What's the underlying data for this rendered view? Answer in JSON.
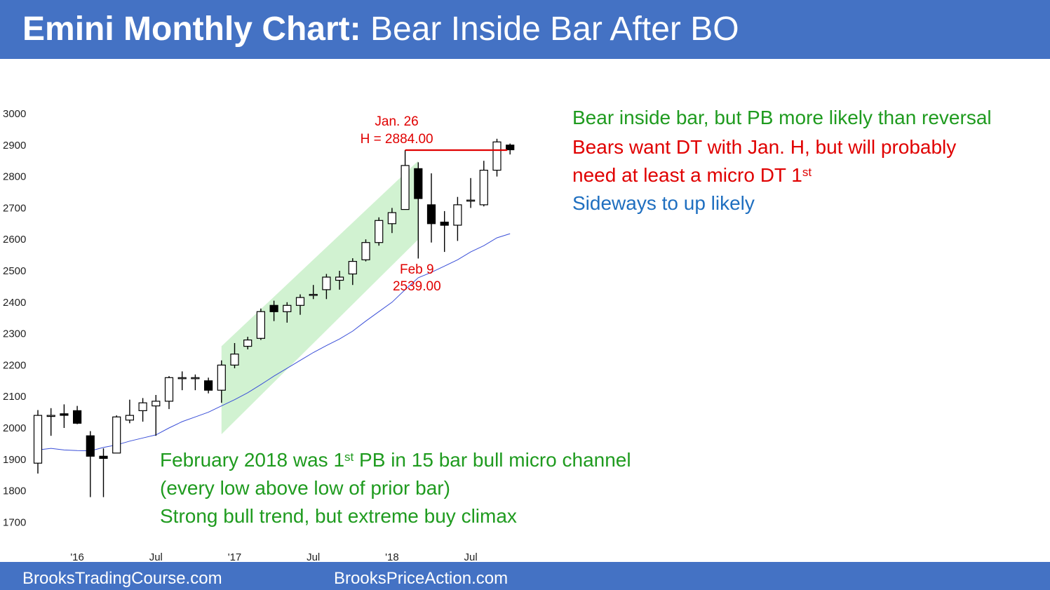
{
  "header": {
    "title_bold": "Emini Monthly Chart:",
    "title_rest": " Bear Inside Bar After BO"
  },
  "footer": {
    "left_link": "BrooksTradingCourse.com",
    "right_link": "BrooksPriceAction.com"
  },
  "notes_right": {
    "line1": "Bear inside bar, but PB more likely than reversal",
    "line2": "Bears want DT with Jan. H, but will probably",
    "line3_pre": "need at least a micro DT 1",
    "line3_sup": "st",
    "line4": "Sideways to up likely"
  },
  "notes_bottom": {
    "line1_pre": "February 2018 was 1",
    "line1_sup": "st",
    "line1_post": " PB in 15 bar bull micro channel",
    "line2": "(every low above low of prior bar)",
    "line3": "Strong bull trend, but extreme buy climax"
  },
  "colors": {
    "header_bg": "#4472C4",
    "green_text": "#1F9B1F",
    "red_text": "#E00000",
    "blue_text": "#1F6FC0",
    "channel_fill": "#C9F0C9",
    "moving_average": "#3A4FD8"
  },
  "chart_data": {
    "type": "candlestick",
    "timeframe": "monthly",
    "ylim": [
      1700,
      3000
    ],
    "y_ticks": [
      3000,
      2900,
      2800,
      2700,
      2600,
      2500,
      2400,
      2300,
      2200,
      2100,
      2000,
      1900,
      1800,
      1700
    ],
    "x_ticks": [
      {
        "label": "'16",
        "index": 3
      },
      {
        "label": "Jul",
        "index": 9
      },
      {
        "label": "'17",
        "index": 15
      },
      {
        "label": "Jul",
        "index": 21
      },
      {
        "label": "'18",
        "index": 27
      },
      {
        "label": "Jul",
        "index": 33
      }
    ],
    "bars": [
      {
        "o": 1888,
        "h": 2057,
        "l": 1855,
        "c": 2040
      },
      {
        "o": 2040,
        "h": 2063,
        "l": 1975,
        "c": 2040
      },
      {
        "o": 2045,
        "h": 2075,
        "l": 2000,
        "c": 2040
      },
      {
        "o": 2055,
        "h": 2070,
        "l": 2012,
        "c": 2015
      },
      {
        "o": 1975,
        "h": 1990,
        "l": 1780,
        "c": 1910
      },
      {
        "o": 1910,
        "h": 1935,
        "l": 1780,
        "c": 1903
      },
      {
        "o": 1920,
        "h": 2040,
        "l": 1920,
        "c": 2035
      },
      {
        "o": 2025,
        "h": 2090,
        "l": 2015,
        "c": 2040
      },
      {
        "o": 2055,
        "h": 2095,
        "l": 2020,
        "c": 2080
      },
      {
        "o": 2070,
        "h": 2105,
        "l": 1975,
        "c": 2085
      },
      {
        "o": 2085,
        "h": 2165,
        "l": 2060,
        "c": 2160
      },
      {
        "o": 2160,
        "h": 2180,
        "l": 2120,
        "c": 2160
      },
      {
        "o": 2160,
        "h": 2170,
        "l": 2120,
        "c": 2160
      },
      {
        "o": 2150,
        "h": 2160,
        "l": 2110,
        "c": 2120
      },
      {
        "o": 2120,
        "h": 2215,
        "l": 2080,
        "c": 2200
      },
      {
        "o": 2200,
        "h": 2270,
        "l": 2190,
        "c": 2235
      },
      {
        "o": 2260,
        "h": 2290,
        "l": 2250,
        "c": 2280
      },
      {
        "o": 2285,
        "h": 2380,
        "l": 2280,
        "c": 2370
      },
      {
        "o": 2390,
        "h": 2405,
        "l": 2340,
        "c": 2370
      },
      {
        "o": 2370,
        "h": 2400,
        "l": 2335,
        "c": 2390
      },
      {
        "o": 2390,
        "h": 2425,
        "l": 2360,
        "c": 2415
      },
      {
        "o": 2425,
        "h": 2455,
        "l": 2410,
        "c": 2425
      },
      {
        "o": 2440,
        "h": 2490,
        "l": 2410,
        "c": 2480
      },
      {
        "o": 2470,
        "h": 2500,
        "l": 2440,
        "c": 2480
      },
      {
        "o": 2490,
        "h": 2540,
        "l": 2455,
        "c": 2530
      },
      {
        "o": 2535,
        "h": 2600,
        "l": 2530,
        "c": 2590
      },
      {
        "o": 2590,
        "h": 2670,
        "l": 2580,
        "c": 2660
      },
      {
        "o": 2650,
        "h": 2700,
        "l": 2620,
        "c": 2685
      },
      {
        "o": 2695,
        "h": 2884,
        "l": 2695,
        "c": 2835
      },
      {
        "o": 2825,
        "h": 2845,
        "l": 2539,
        "c": 2730
      },
      {
        "o": 2710,
        "h": 2810,
        "l": 2590,
        "c": 2650
      },
      {
        "o": 2655,
        "h": 2690,
        "l": 2560,
        "c": 2645
      },
      {
        "o": 2645,
        "h": 2735,
        "l": 2595,
        "c": 2710
      },
      {
        "o": 2725,
        "h": 2795,
        "l": 2700,
        "c": 2725
      },
      {
        "o": 2710,
        "h": 2850,
        "l": 2705,
        "c": 2820
      },
      {
        "o": 2820,
        "h": 2920,
        "l": 2800,
        "c": 2910
      },
      {
        "o": 2900,
        "h": 2905,
        "l": 2870,
        "c": 2885
      }
    ],
    "moving_average": [
      1930,
      1935,
      1930,
      1928,
      1927,
      1938,
      1946,
      1958,
      1968,
      1978,
      2000,
      2020,
      2035,
      2050,
      2070,
      2090,
      2112,
      2138,
      2165,
      2190,
      2215,
      2240,
      2262,
      2283,
      2308,
      2340,
      2370,
      2400,
      2440,
      2478,
      2495,
      2515,
      2535,
      2560,
      2580,
      2605,
      2618
    ],
    "annotations": [
      {
        "text_lines": [
          "Jan. 26",
          "H = 2884.00"
        ],
        "bar_index": 28,
        "price": 2884
      },
      {
        "text_lines": [
          "Feb 9",
          "2539.00"
        ],
        "bar_index": 29,
        "price": 2539
      }
    ],
    "high_line": {
      "price": 2884,
      "from_index": 28,
      "to_index": 36
    },
    "channel": {
      "from_index": 14,
      "to_index": 29
    }
  }
}
